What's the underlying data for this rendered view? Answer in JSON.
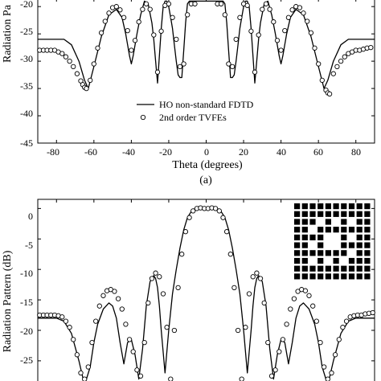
{
  "figure_labels": {
    "top_caption": "(a)"
  },
  "charts": {
    "top": {
      "xlabel": "Theta (degrees)",
      "ylabel": "Radiation Pa",
      "x_ticks": [
        "-80",
        "-60",
        "-40",
        "-20",
        "0",
        "20",
        "40",
        "60",
        "80"
      ],
      "y_ticks": [
        "-20",
        "-25",
        "-30",
        "-35",
        "-40",
        "-45"
      ],
      "legend": {
        "line_label": "HO non-standard FDTD",
        "marker_label": "2nd order TVFEs"
      }
    },
    "bottom": {
      "ylabel": "Radiation Pattern (dB)",
      "y_ticks": [
        "0",
        "-5",
        "-10",
        "-15",
        "-20",
        "-25"
      ]
    }
  },
  "chart_data": [
    {
      "type": "line",
      "xlabel": "Theta (degrees)",
      "ylabel": "Radiation Pa",
      "xlim": [
        -90,
        90
      ],
      "ylim": [
        -45,
        -18.5
      ],
      "series": [
        {
          "name": "HO non-standard FDTD",
          "style": "solid line",
          "x": [
            -90,
            -76,
            -72,
            -68,
            -65,
            -63,
            -60,
            -56,
            -52,
            -48,
            -45,
            -43,
            -41,
            -40,
            -39,
            -37,
            -35,
            -33,
            -31,
            -29,
            -28,
            -27,
            -26,
            -25,
            -24,
            -23,
            -22,
            -21,
            -20,
            -19,
            -18,
            -17,
            -16,
            -15,
            -14,
            -13,
            -12,
            -11,
            -10,
            -9,
            -8,
            -6,
            -5,
            -4,
            -3,
            -2,
            -1,
            0,
            1,
            2,
            3,
            4,
            5,
            6,
            8,
            9,
            10,
            11,
            12,
            13,
            14,
            15,
            16,
            17,
            18,
            19,
            20,
            21,
            22,
            23,
            24,
            25,
            26,
            27,
            28,
            29,
            31,
            33,
            35,
            37,
            39,
            40,
            41,
            43,
            45,
            48,
            52,
            56,
            60,
            63,
            65,
            68,
            72,
            76,
            90
          ],
          "y": [
            -26,
            -26,
            -27,
            -30,
            -33.5,
            -35,
            -31,
            -25.5,
            -21.5,
            -20.5,
            -22,
            -25,
            -29,
            -30.5,
            -29,
            -25,
            -21.5,
            -19,
            -19.5,
            -23,
            -26,
            -30,
            -34,
            -29,
            -24,
            -20,
            -19,
            -19,
            -20,
            -22,
            -24,
            -27,
            -30,
            -32.5,
            -33,
            -33,
            -28,
            -23,
            -19.5,
            -19,
            -19,
            -19,
            -19,
            -19,
            -19,
            -19,
            -19,
            -19,
            -19,
            -19,
            -19,
            -19,
            -19,
            -19,
            -19,
            -19,
            -19.5,
            -23,
            -28,
            -33,
            -33,
            -32.5,
            -30,
            -27,
            -24,
            -22,
            -20,
            -19,
            -19,
            -20,
            -24,
            -29,
            -34,
            -30,
            -26,
            -23,
            -19.5,
            -19,
            -21.5,
            -25,
            -29,
            -30.5,
            -29,
            -25,
            -22,
            -20.5,
            -21.5,
            -25.5,
            -31,
            -35,
            -33.5,
            -30,
            -27,
            -26,
            -26
          ]
        },
        {
          "name": "2nd order TVFEs",
          "style": "open circles",
          "x": [
            -89,
            -87,
            -85,
            -83,
            -81,
            -79,
            -77,
            -75,
            -73,
            -71,
            -69,
            -67,
            -66,
            -65,
            -64,
            -62,
            -60,
            -58,
            -56,
            -54,
            -52,
            -50,
            -48,
            -46,
            -44,
            -42,
            -40,
            -38,
            -36,
            -34,
            -32,
            -30,
            -28,
            -26,
            -24,
            -22,
            -20,
            -18,
            -16,
            -14,
            -12,
            -10,
            -8,
            -6,
            6,
            8,
            10,
            12,
            14,
            16,
            18,
            20,
            22,
            24,
            26,
            28,
            30,
            32,
            34,
            36,
            38,
            40,
            42,
            44,
            46,
            48,
            50,
            52,
            54,
            56,
            58,
            60,
            62,
            64,
            65,
            66,
            68,
            70,
            72,
            74,
            76,
            78,
            80,
            82,
            84,
            86,
            88
          ],
          "y": [
            -28,
            -28,
            -28,
            -28,
            -28,
            -28.3,
            -28.6,
            -29.2,
            -30,
            -31,
            -32.3,
            -33.6,
            -34.3,
            -34.8,
            -35,
            -33.5,
            -30.5,
            -27.6,
            -24.8,
            -22.7,
            -21.2,
            -20.2,
            -20,
            -20.6,
            -22,
            -24.4,
            -28,
            -26.2,
            -22.8,
            -20.5,
            -19.5,
            -20.5,
            -25.2,
            -32,
            -24.5,
            -19.8,
            -19.5,
            -22,
            -26,
            -31,
            -30.5,
            -21.5,
            -19.5,
            -19.5,
            -19.5,
            -19.5,
            -21.5,
            -30.5,
            -31,
            -26,
            -22,
            -19.5,
            -19.8,
            -24.5,
            -32,
            -25.2,
            -20.5,
            -19.5,
            -20.5,
            -22.8,
            -26.2,
            -28,
            -24.4,
            -22,
            -20.6,
            -20,
            -20.2,
            -21.2,
            -22.7,
            -24.8,
            -27.6,
            -30.5,
            -33.5,
            -35.3,
            -35.8,
            -36,
            -32.3,
            -31,
            -30,
            -29.2,
            -28.6,
            -28.3,
            -28,
            -28,
            -27.8,
            -27.6,
            -27.5
          ]
        }
      ]
    },
    {
      "type": "line",
      "xlabel": "",
      "ylabel": "Radiation Pattern (dB)",
      "xlim": [
        -90,
        90
      ],
      "ylim": [
        -29.5,
        1.5
      ],
      "series": [
        {
          "name": "HO non-standard FDTD",
          "style": "solid line",
          "x": [
            -90,
            -80,
            -76,
            -72,
            -68,
            -65,
            -62,
            -60,
            -58,
            -55,
            -52,
            -50,
            -48,
            -46,
            -44,
            -42,
            -40,
            -38,
            -36,
            -34,
            -32,
            -30,
            -28,
            -27,
            -26,
            -25,
            -24,
            -22,
            -20,
            -18,
            -16,
            -14,
            -12,
            -10,
            -8,
            -6,
            -4,
            -2,
            0,
            2,
            4,
            6,
            8,
            10,
            12,
            14,
            16,
            18,
            20,
            22,
            24,
            25,
            26,
            27,
            28,
            30,
            32,
            34,
            36,
            38,
            40,
            42,
            44,
            46,
            48,
            50,
            52,
            55,
            58,
            60,
            62,
            65,
            68,
            72,
            76,
            80,
            90
          ],
          "y": [
            -18,
            -18,
            -18.5,
            -20.5,
            -25,
            -29,
            -26,
            -22,
            -19,
            -16.5,
            -15.5,
            -16,
            -18,
            -22,
            -25.5,
            -22,
            -21.5,
            -24,
            -28,
            -23,
            -16,
            -12,
            -11,
            -11.5,
            -13,
            -16,
            -20,
            -27,
            -20,
            -14,
            -10,
            -6.5,
            -3.5,
            -1.5,
            -0.5,
            0,
            0.3,
            0.2,
            0,
            0.2,
            0.3,
            0,
            -0.5,
            -1.5,
            -3.5,
            -6.5,
            -10,
            -14,
            -20,
            -27,
            -20,
            -16,
            -13,
            -11.5,
            -11,
            -12,
            -16,
            -23,
            -28,
            -24,
            -21.5,
            -22,
            -25.5,
            -22,
            -18,
            -16,
            -15.5,
            -16.5,
            -19,
            -22,
            -26,
            -29,
            -25,
            -20.5,
            -18.5,
            -18,
            -18
          ]
        },
        {
          "name": "2nd order TVFEs",
          "style": "open circles",
          "x": [
            -89,
            -87,
            -85,
            -83,
            -81,
            -79,
            -77,
            -75,
            -73,
            -71,
            -69,
            -67,
            -65,
            -63,
            -61,
            -59,
            -57,
            -55,
            -53,
            -51,
            -49,
            -47,
            -45,
            -43,
            -41,
            -39,
            -37,
            -35,
            -33,
            -31,
            -29,
            -27,
            -25,
            -23,
            -21,
            -19,
            -17,
            -15,
            -13,
            -11,
            -9,
            -7,
            -5,
            -3,
            -1,
            1,
            3,
            5,
            7,
            9,
            11,
            13,
            15,
            17,
            19,
            21,
            23,
            25,
            27,
            29,
            31,
            33,
            35,
            37,
            39,
            41,
            43,
            45,
            47,
            49,
            51,
            53,
            55,
            57,
            59,
            61,
            63,
            65,
            67,
            69,
            71,
            73,
            75,
            77,
            79,
            81,
            83,
            85,
            87,
            89
          ],
          "y": [
            -17.5,
            -17.5,
            -17.5,
            -17.5,
            -17.5,
            -17.6,
            -17.8,
            -18.5,
            -19.5,
            -21.5,
            -24,
            -27,
            -28,
            -26,
            -22,
            -18.5,
            -16,
            -14.3,
            -13.5,
            -13.3,
            -13.6,
            -14.8,
            -16.5,
            -19,
            -21.5,
            -23.5,
            -26.5,
            -27.5,
            -22,
            -15.5,
            -11.5,
            -10.6,
            -11.2,
            -14,
            -19.5,
            -28,
            -20,
            -13,
            -7.5,
            -3.8,
            -1.5,
            -0.4,
            0,
            0.1,
            0,
            0,
            0.1,
            0,
            -0.4,
            -1.5,
            -3.8,
            -7.5,
            -13,
            -20,
            -28,
            -19.5,
            -14,
            -11.2,
            -10.6,
            -11.5,
            -15.5,
            -22,
            -27.5,
            -26.5,
            -23.5,
            -21.5,
            -19,
            -16.5,
            -14.8,
            -13.6,
            -13.3,
            -13.5,
            -14.3,
            -16,
            -18.5,
            -22,
            -26,
            -28,
            -27,
            -24,
            -21.5,
            -19.5,
            -18.5,
            -17.8,
            -17.6,
            -17.5,
            -17.5,
            -17.3,
            -17.2,
            -17.1
          ]
        }
      ]
    }
  ]
}
